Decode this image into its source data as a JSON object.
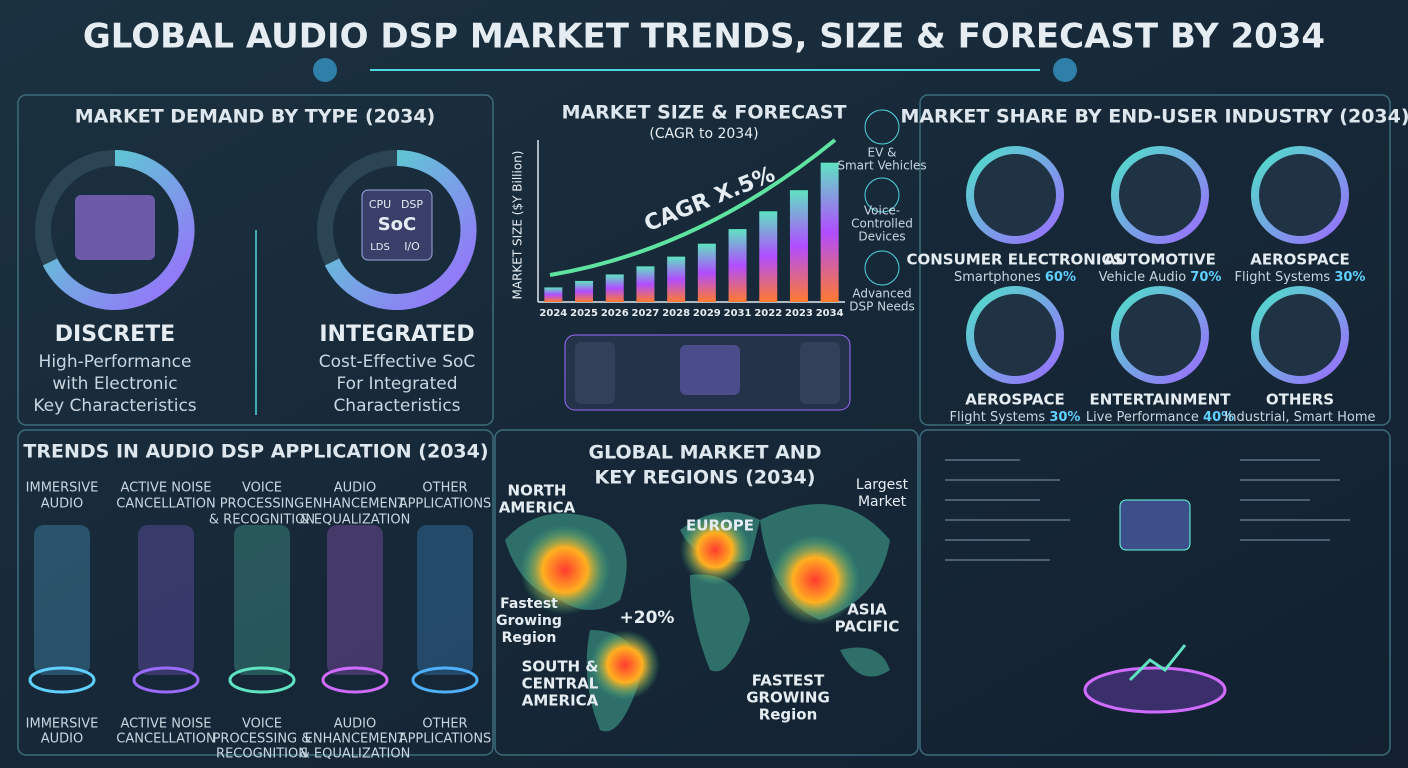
{
  "title": "GLOBAL AUDIO DSP MARKET TRENDS, SIZE & FORECAST BY 2034",
  "demand_by_type": {
    "title": "MARKET DEMAND BY TYPE (2034)",
    "items": [
      {
        "name": "DISCRETE",
        "description": [
          "High-Performance",
          "with Electronic",
          "Key Characteristics"
        ]
      },
      {
        "name": "INTEGRATED",
        "chip_labels": [
          "CPU",
          "DSP",
          "SoC",
          "LDS",
          "I/O"
        ],
        "description": [
          "Cost-Effective SoC",
          "For Integrated",
          "Characteristics"
        ]
      }
    ]
  },
  "chart_data": {
    "type": "bar",
    "title": "MARKET SIZE & FORECAST",
    "subtitle": "(CAGR to 2034)",
    "y_label": "MARKET SIZE ($Y Billion)",
    "annotation": "CAGR X.5%",
    "categories": [
      "2024",
      "2025",
      "2026",
      "2027",
      "2028",
      "2029",
      "2031",
      "2022",
      "2023",
      "2034"
    ],
    "values": [
      9,
      13,
      17,
      22,
      28,
      36,
      45,
      56,
      69,
      86
    ],
    "ylim": [
      0,
      100
    ],
    "colors": [
      "#ff7a2f",
      "#b04dff",
      "#5fe3c2"
    ],
    "side_labels": [
      [
        "EV &",
        "Smart Vehicles"
      ],
      [
        "Voice-",
        "Controlled",
        "Devices"
      ],
      [
        "Advanced",
        "DSP Needs"
      ]
    ]
  },
  "end_user": {
    "title": "MARKET SHARE BY END-USER INDUSTRY (2034)",
    "items": [
      {
        "name": "CONSUMER ELECTRONICS",
        "detail": "Smartphones",
        "share": "60%"
      },
      {
        "name": "AUTOMOTIVE",
        "detail": "Vehicle Audio",
        "share": "70%"
      },
      {
        "name": "AEROSPACE",
        "detail": "Flight Systems",
        "share": "30%"
      },
      {
        "name": "AEROSPACE",
        "detail": "Flight Systems",
        "share": "30%"
      },
      {
        "name": "ENTERTAINMENT",
        "detail": "Live Performance",
        "share": "40%"
      },
      {
        "name": "OTHERS",
        "detail": "Industrial, Smart Home"
      }
    ]
  },
  "trends": {
    "title": "TRENDS IN AUDIO DSP APPLICATION (2034)",
    "top_labels": [
      [
        "IMMERSIVE",
        "AUDIO"
      ],
      [
        "ACTIVE NOISE",
        "CANCELLATION"
      ],
      [
        "VOICE",
        "PROCESSING",
        "& RECOGNITION"
      ],
      [
        "AUDIO",
        "ENHANCEMENT",
        "& EQUALIZATION"
      ],
      [
        "OTHER",
        "APPLICATIONS"
      ]
    ],
    "bottom_labels": [
      [
        "IMMERSIVE",
        "AUDIO"
      ],
      [
        "ACTIVE NOISE",
        "CANCELLATION"
      ],
      [
        "VOICE",
        "PROCESSING &",
        "RECOGNITION"
      ],
      [
        "AUDIO",
        "ENHANCEMENT",
        "& EQUALIZATION"
      ],
      [
        "OTHER",
        "APPLICATIONS"
      ]
    ]
  },
  "regions": {
    "title": [
      "GLOBAL MARKET AND",
      "KEY REGIONS (2034)"
    ],
    "north_america": [
      "NORTH",
      "AMERICA"
    ],
    "europe": "EUROPE",
    "largest_market": [
      "Largest",
      "Market"
    ],
    "fastest_growing": [
      "Fastest",
      "Growing",
      "Region"
    ],
    "growth": "+20%",
    "asia_pacific": [
      "ASIA",
      "PACIFIC"
    ],
    "south_america": [
      "SOUTH &",
      "CENTRAL",
      "AMERICA"
    ],
    "fastest_growing_asia": [
      "FASTEST",
      "GROWING",
      "Region"
    ]
  }
}
